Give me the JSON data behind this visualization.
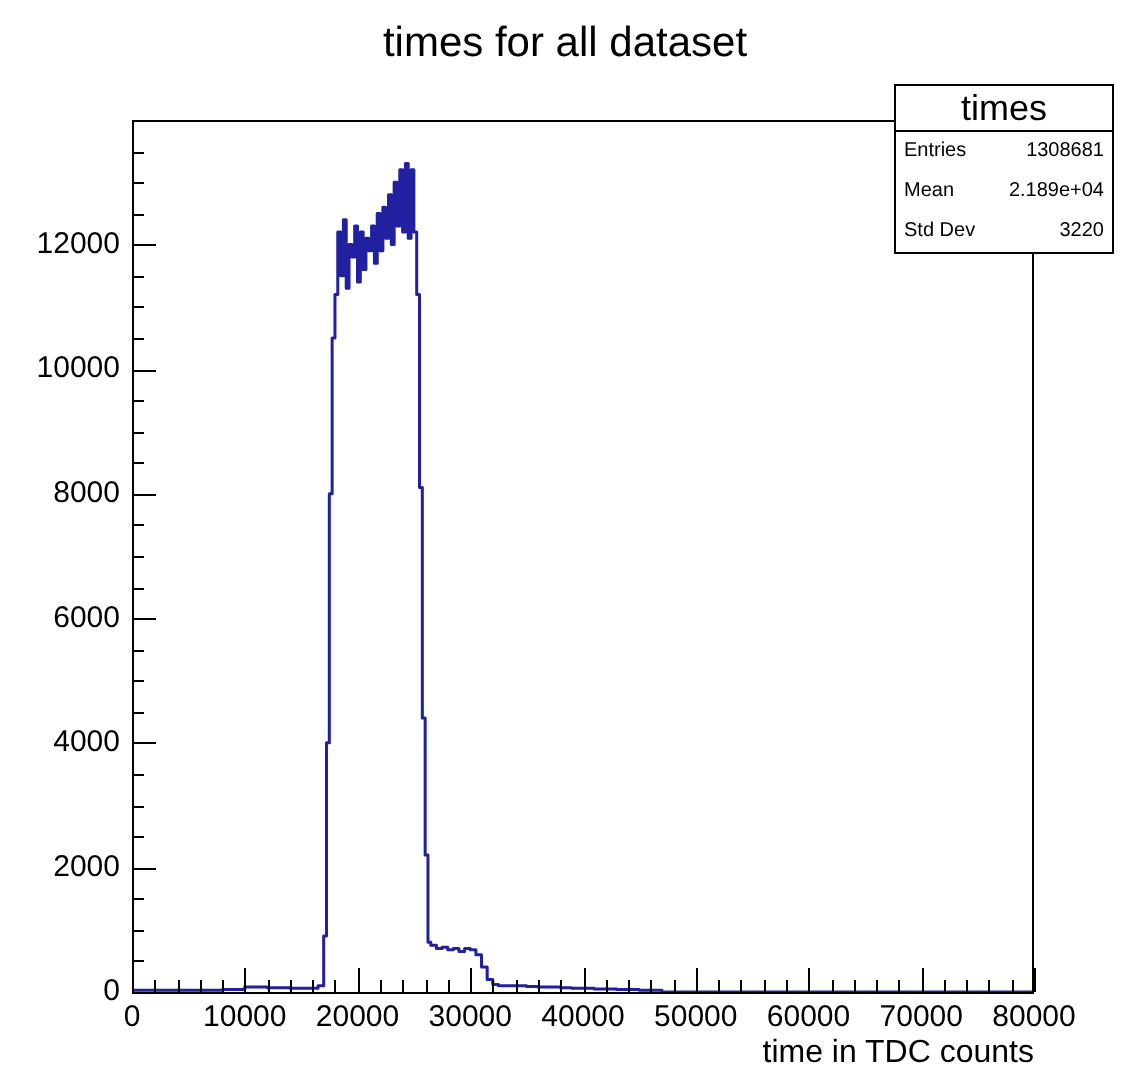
{
  "chart_data": {
    "type": "histogram",
    "title": "times for all dataset",
    "xlabel": "time in TDC counts",
    "bins": [
      0,
      2000,
      4000,
      6000,
      8000,
      10000,
      12000,
      14000,
      16000,
      16500,
      17000,
      17250,
      17500,
      17750,
      18000,
      18250,
      18500,
      18750,
      19000,
      19250,
      19500,
      19750,
      20000,
      20250,
      20500,
      20750,
      21000,
      21250,
      21500,
      21750,
      22000,
      22250,
      22500,
      22750,
      23000,
      23250,
      23500,
      23750,
      24000,
      24250,
      24500,
      24750,
      25000,
      25250,
      25500,
      25750,
      26000,
      26250,
      26500,
      27000,
      27500,
      28000,
      28500,
      29000,
      29500,
      30000,
      30500,
      31000,
      31500,
      32000,
      32500,
      33000,
      34000,
      35000,
      36000,
      37000,
      38000,
      39000,
      40000,
      41000,
      42000,
      43000,
      44000,
      45000,
      46000,
      47000,
      80000
    ],
    "values": [
      30,
      30,
      30,
      30,
      40,
      80,
      70,
      60,
      60,
      100,
      900,
      4000,
      8000,
      10500,
      11200,
      12200,
      11500,
      12400,
      11300,
      12000,
      11800,
      12300,
      11400,
      12200,
      11600,
      12100,
      11900,
      12300,
      11700,
      12500,
      11900,
      12600,
      12100,
      12800,
      12000,
      13000,
      12300,
      13200,
      12200,
      13300,
      12100,
      13200,
      12200,
      11200,
      8100,
      4400,
      2200,
      800,
      750,
      700,
      720,
      680,
      700,
      650,
      700,
      680,
      600,
      400,
      200,
      120,
      100,
      100,
      100,
      90,
      80,
      80,
      70,
      60,
      60,
      50,
      50,
      40,
      40,
      30,
      30,
      0
    ],
    "color": "#2020a0",
    "xlim": [
      0,
      80000
    ],
    "xticks": [
      0,
      {
        "value": 2000,
        "label": null
      },
      {
        "value": 4000,
        "label": null
      },
      {
        "value": 6000,
        "label": null
      },
      {
        "value": 8000,
        "label": null
      },
      10000,
      {
        "value": 12000,
        "label": null
      },
      {
        "value": 14000,
        "label": null
      },
      {
        "value": 16000,
        "label": null
      },
      {
        "value": 18000,
        "label": null
      },
      20000,
      {
        "value": 22000,
        "label": null
      },
      {
        "value": 24000,
        "label": null
      },
      {
        "value": 26000,
        "label": null
      },
      {
        "value": 28000,
        "label": null
      },
      30000,
      {
        "value": 32000,
        "label": null
      },
      {
        "value": 34000,
        "label": null
      },
      {
        "value": 36000,
        "label": null
      },
      {
        "value": 38000,
        "label": null
      },
      40000,
      {
        "value": 42000,
        "label": null
      },
      {
        "value": 44000,
        "label": null
      },
      {
        "value": 46000,
        "label": null
      },
      {
        "value": 48000,
        "label": null
      },
      50000,
      {
        "value": 52000,
        "label": null
      },
      {
        "value": 54000,
        "label": null
      },
      {
        "value": 56000,
        "label": null
      },
      {
        "value": 58000,
        "label": null
      },
      60000,
      {
        "value": 62000,
        "label": null
      },
      {
        "value": 64000,
        "label": null
      },
      {
        "value": 66000,
        "label": null
      },
      {
        "value": 68000,
        "label": null
      },
      70000,
      {
        "value": 72000,
        "label": null
      },
      {
        "value": 74000,
        "label": null
      },
      {
        "value": 76000,
        "label": null
      },
      {
        "value": 78000,
        "label": null
      },
      80000
    ],
    "ylim": [
      0,
      14000
    ],
    "yticks": [
      0,
      {
        "value": 500,
        "label": null
      },
      {
        "value": 1000,
        "label": null
      },
      {
        "value": 1500,
        "label": null
      },
      2000,
      {
        "value": 2500,
        "label": null
      },
      {
        "value": 3000,
        "label": null
      },
      {
        "value": 3500,
        "label": null
      },
      4000,
      {
        "value": 4500,
        "label": null
      },
      {
        "value": 5000,
        "label": null
      },
      {
        "value": 5500,
        "label": null
      },
      6000,
      {
        "value": 6500,
        "label": null
      },
      {
        "value": 7000,
        "label": null
      },
      {
        "value": 7500,
        "label": null
      },
      8000,
      {
        "value": 8500,
        "label": null
      },
      {
        "value": 9000,
        "label": null
      },
      {
        "value": 9500,
        "label": null
      },
      10000,
      {
        "value": 10500,
        "label": null
      },
      {
        "value": 11000,
        "label": null
      },
      {
        "value": 11500,
        "label": null
      },
      12000,
      {
        "value": 12500,
        "label": null
      },
      {
        "value": 13000,
        "label": null
      },
      {
        "value": 13500,
        "label": null
      }
    ],
    "annotations": [
      "times",
      "Entries",
      "1308681",
      "Mean",
      "2.189e+04",
      "Std Dev",
      "3220"
    ]
  }
}
